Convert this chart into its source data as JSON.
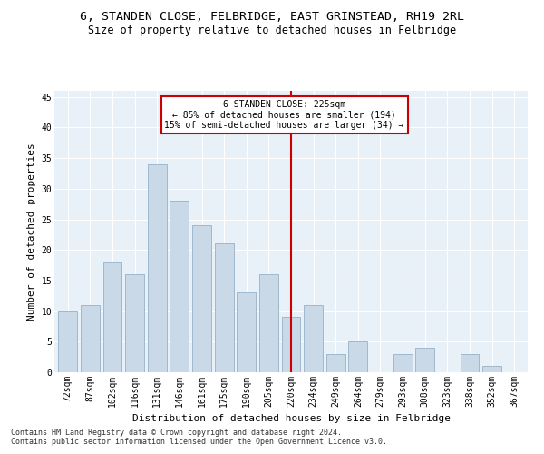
{
  "title": "6, STANDEN CLOSE, FELBRIDGE, EAST GRINSTEAD, RH19 2RL",
  "subtitle": "Size of property relative to detached houses in Felbridge",
  "xlabel": "Distribution of detached houses by size in Felbridge",
  "ylabel": "Number of detached properties",
  "categories": [
    "72sqm",
    "87sqm",
    "102sqm",
    "116sqm",
    "131sqm",
    "146sqm",
    "161sqm",
    "175sqm",
    "190sqm",
    "205sqm",
    "220sqm",
    "234sqm",
    "249sqm",
    "264sqm",
    "279sqm",
    "293sqm",
    "308sqm",
    "323sqm",
    "338sqm",
    "352sqm",
    "367sqm"
  ],
  "values": [
    10,
    11,
    18,
    16,
    34,
    28,
    24,
    21,
    13,
    16,
    9,
    11,
    3,
    5,
    0,
    3,
    4,
    0,
    3,
    1,
    0
  ],
  "bar_color": "#c9d9e8",
  "bar_edge_color": "#a0b8cc",
  "marker_index": 10,
  "marker_color": "#cc0000",
  "annotation_title": "6 STANDEN CLOSE: 225sqm",
  "annotation_line1": "← 85% of detached houses are smaller (194)",
  "annotation_line2": "15% of semi-detached houses are larger (34) →",
  "ylim": [
    0,
    46
  ],
  "yticks": [
    0,
    5,
    10,
    15,
    20,
    25,
    30,
    35,
    40,
    45
  ],
  "footer1": "Contains HM Land Registry data © Crown copyright and database right 2024.",
  "footer2": "Contains public sector information licensed under the Open Government Licence v3.0.",
  "bg_color": "#e8f0f8",
  "title_fontsize": 9.5,
  "subtitle_fontsize": 8.5,
  "axis_label_fontsize": 8,
  "tick_fontsize": 7,
  "footer_fontsize": 6
}
